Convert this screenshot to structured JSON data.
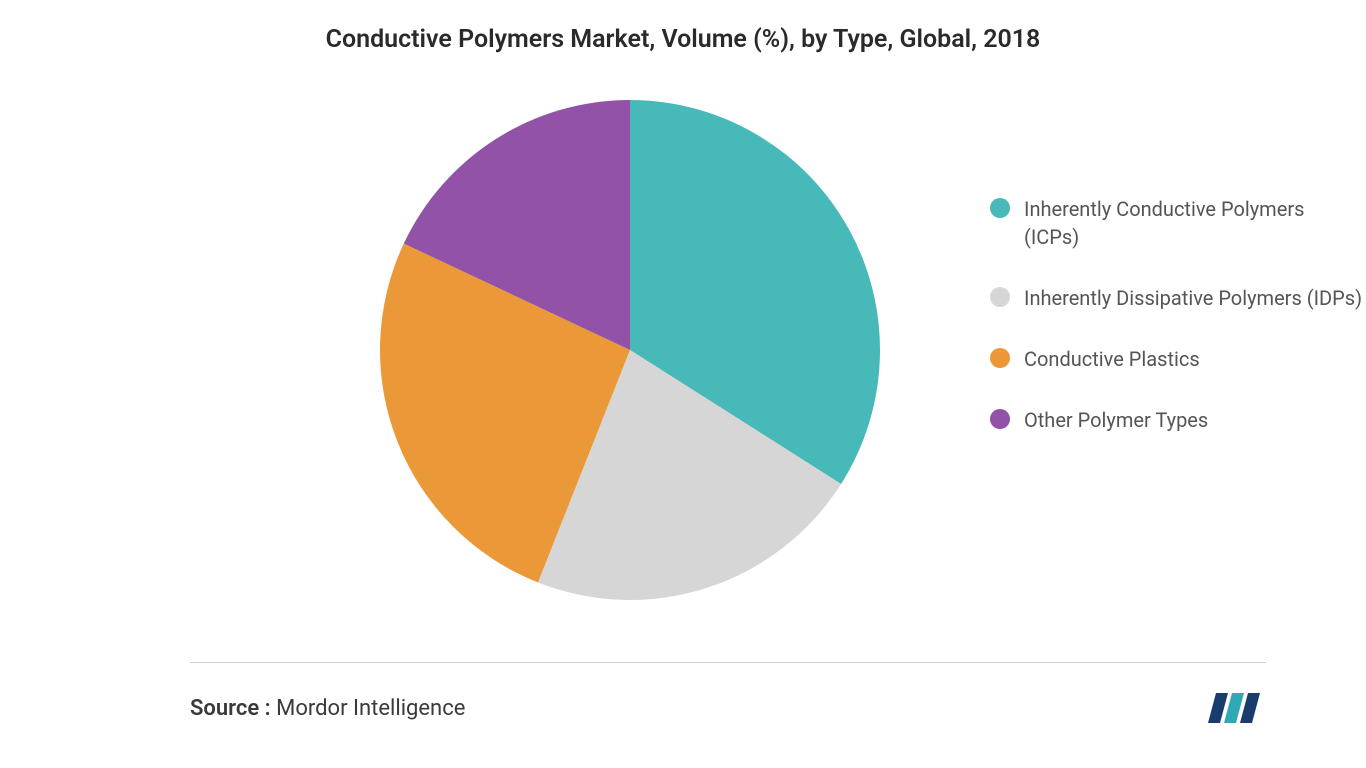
{
  "chart": {
    "type": "pie",
    "title": "Conductive Polymers Market, Volume (%), by Type, Global, 2018",
    "title_fontsize": 25,
    "title_color": "#2a2a2a",
    "background_color": "#ffffff",
    "radius": 250,
    "segments": [
      {
        "label": "Inherently Conductive Polymers (ICPs)",
        "value": 34,
        "color": "#48b9b9"
      },
      {
        "label": "Inherently Dissipative Polymers (IDPs)",
        "value": 22,
        "color": "#d6d6d6"
      },
      {
        "label": "Conductive Plastics",
        "value": 26,
        "color": "#eb9938"
      },
      {
        "label": "Other Polymer Types",
        "value": 18,
        "color": "#9152a8"
      }
    ],
    "legend": {
      "position": "right",
      "marker_shape": "circle",
      "marker_size": 20,
      "label_fontsize": 20,
      "label_color": "#555555"
    }
  },
  "footer": {
    "source_label": "Source :",
    "source_name": "Mordor Intelligence",
    "source_fontsize": 22,
    "divider_color": "#d0d0d0",
    "logo_colors": {
      "bar1": "#1a3b6e",
      "bar2": "#2faab5",
      "bar3": "#1a3b6e"
    }
  }
}
